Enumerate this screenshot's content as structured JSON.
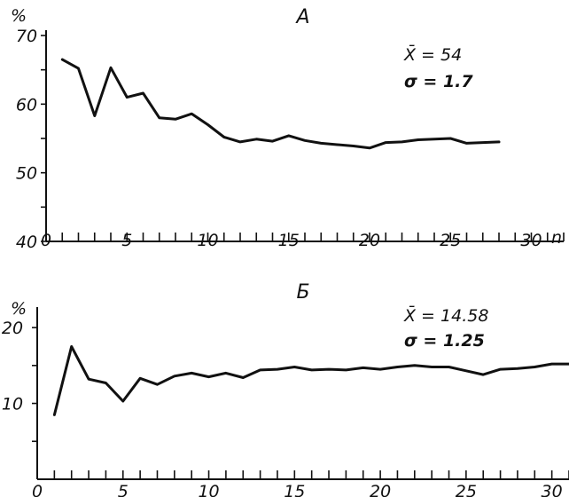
{
  "chart_data": [
    {
      "type": "line",
      "title": "А",
      "ylabel": "%",
      "xlabel": "n",
      "xlim": [
        0,
        32
      ],
      "ylim": [
        40,
        70
      ],
      "x_ticks": [
        0,
        5,
        10,
        15,
        20,
        25,
        30
      ],
      "y_ticks": [
        40,
        50,
        60,
        70
      ],
      "annotations": [
        "X̄ = 54",
        "σ = 1.7"
      ],
      "series": [
        {
          "x": [
            1,
            2,
            3,
            4,
            5,
            6,
            7,
            8,
            9,
            10,
            11,
            12,
            13,
            14,
            15,
            16,
            17,
            18,
            19,
            20,
            21,
            22,
            23,
            24,
            25,
            26,
            27,
            28
          ],
          "y": [
            66.5,
            65.2,
            58.3,
            65.3,
            61,
            61.6,
            58,
            57.8,
            58.6,
            57,
            55.2,
            54.5,
            54.9,
            54.6,
            55.4,
            54.7,
            54.3,
            54.1,
            53.9,
            53.6,
            54.4,
            54.5,
            54.8,
            54.9,
            55,
            54.3,
            54.4,
            54.5
          ]
        }
      ],
      "grid": false
    },
    {
      "type": "line",
      "title": "Б",
      "ylabel": "%",
      "xlabel": "n",
      "xlim": [
        0,
        31
      ],
      "ylim": [
        0,
        22
      ],
      "x_ticks": [
        0,
        5,
        10,
        15,
        20,
        25,
        30
      ],
      "y_ticks": [
        10,
        20
      ],
      "annotations": [
        "X̄ = 14.58",
        "σ = 1.25"
      ],
      "series": [
        {
          "x": [
            1,
            2,
            3,
            4,
            5,
            6,
            7,
            8,
            9,
            10,
            11,
            12,
            13,
            14,
            15,
            16,
            17,
            18,
            19,
            20,
            21,
            22,
            23,
            24,
            25,
            26,
            27,
            28,
            29,
            30,
            31
          ],
          "y": [
            8.5,
            17.5,
            13.2,
            12.7,
            10.3,
            13.3,
            12.5,
            13.6,
            14,
            13.5,
            14,
            13.4,
            14.4,
            14.5,
            14.8,
            14.4,
            14.5,
            14.4,
            14.7,
            14.5,
            14.8,
            15,
            14.8,
            14.8,
            14.3,
            13.8,
            14.5,
            14.6,
            14.8,
            15.2,
            15.2
          ]
        }
      ],
      "grid": false
    }
  ]
}
